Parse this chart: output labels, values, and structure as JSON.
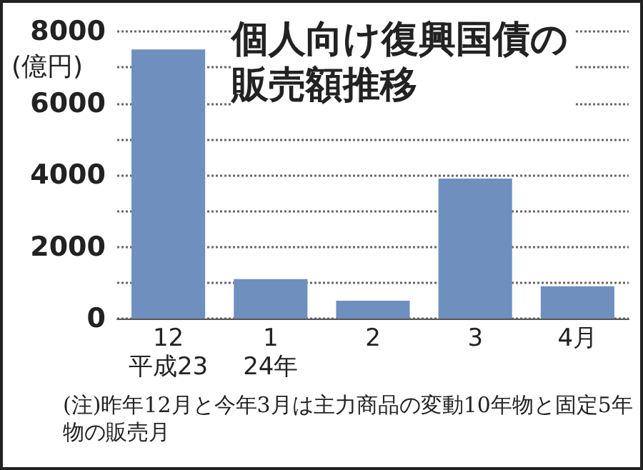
{
  "chart_data": {
    "type": "bar",
    "title": "個人向け復興国債の販売額推移",
    "ylabel": "(億円)",
    "categories": [
      "12\n平成23",
      "1\n24年",
      "2",
      "3",
      "4月"
    ],
    "values": [
      7500,
      1100,
      500,
      3900,
      900
    ],
    "color": "#6f8fbf",
    "ylim": [
      0,
      8000
    ],
    "yticks": [
      0,
      {
        "value": 1000,
        "label": null
      },
      2000,
      {
        "value": 3000,
        "label": null
      },
      4000,
      {
        "value": 5000,
        "label": null
      },
      6000,
      {
        "value": 7000,
        "label": null
      },
      8000
    ],
    "grid": "y",
    "annotations": [
      "(注)昨年12月と今年3月は主力商品の変動10年物と固定5年物の販売月"
    ]
  }
}
